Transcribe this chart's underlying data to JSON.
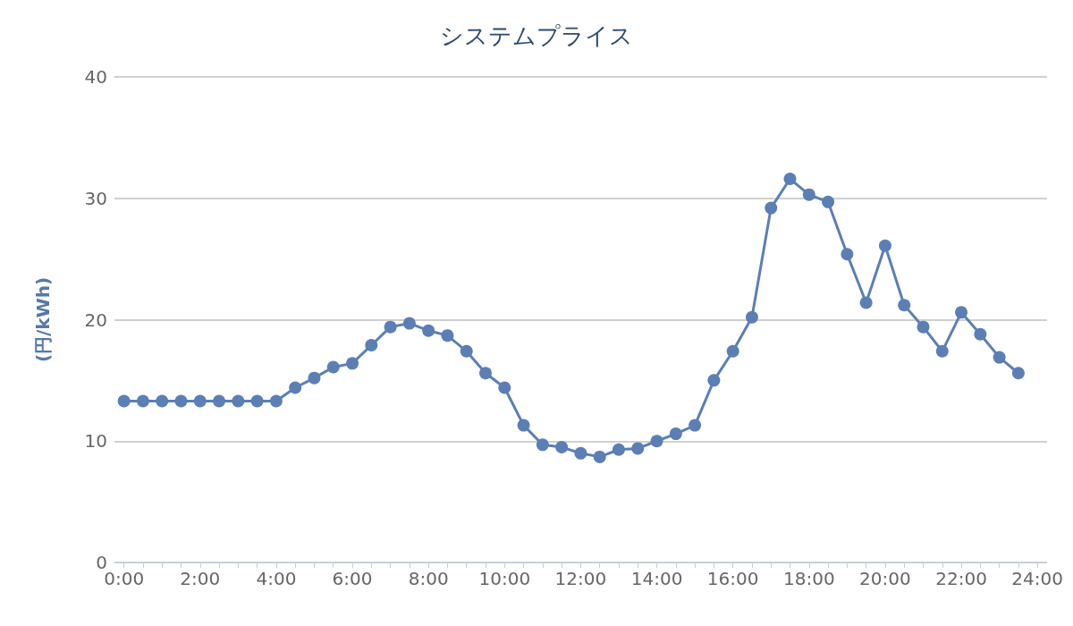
{
  "chart_data": {
    "type": "line",
    "title": "システムプライス",
    "ylabel": "(円/kWh)",
    "x": [
      0,
      0.5,
      1,
      1.5,
      2,
      2.5,
      3,
      3.5,
      4,
      4.5,
      5,
      5.5,
      6,
      6.5,
      7,
      7.5,
      8,
      8.5,
      9,
      9.5,
      10,
      10.5,
      11,
      11.5,
      12,
      12.5,
      13,
      13.5,
      14,
      14.5,
      15,
      15.5,
      16,
      16.5,
      17,
      17.5,
      18,
      18.5,
      19,
      19.5,
      20,
      20.5,
      21,
      21.5,
      22,
      22.5,
      23,
      23.5
    ],
    "series": [
      {
        "color": "#5b7fb5",
        "values": [
          13.3,
          13.3,
          13.3,
          13.3,
          13.3,
          13.3,
          13.3,
          13.3,
          13.3,
          14.4,
          15.2,
          16.1,
          16.4,
          17.9,
          19.4,
          19.7,
          19.1,
          18.7,
          17.4,
          15.6,
          14.4,
          11.3,
          9.7,
          9.5,
          9.0,
          8.7,
          9.3,
          9.4,
          10.0,
          10.6,
          11.3,
          15.0,
          17.4,
          20.2,
          29.2,
          31.6,
          30.3,
          29.7,
          25.4,
          21.4,
          26.1,
          21.2,
          19.4,
          17.4,
          20.6,
          18.8,
          16.9,
          15.6
        ]
      }
    ],
    "xlim": [
      -0.25,
      24.25
    ],
    "xticks": [
      {
        "value": 0,
        "label": "0:00"
      },
      {
        "value": 0.5,
        "label": null
      },
      {
        "value": 1,
        "label": null
      },
      {
        "value": 1.5,
        "label": null
      },
      {
        "value": 2,
        "label": "2:00"
      },
      {
        "value": 2.5,
        "label": null
      },
      {
        "value": 3,
        "label": null
      },
      {
        "value": 3.5,
        "label": null
      },
      {
        "value": 4,
        "label": "4:00"
      },
      {
        "value": 4.5,
        "label": null
      },
      {
        "value": 5,
        "label": null
      },
      {
        "value": 5.5,
        "label": null
      },
      {
        "value": 6,
        "label": "6:00"
      },
      {
        "value": 6.5,
        "label": null
      },
      {
        "value": 7,
        "label": null
      },
      {
        "value": 7.5,
        "label": null
      },
      {
        "value": 8,
        "label": "8:00"
      },
      {
        "value": 8.5,
        "label": null
      },
      {
        "value": 9,
        "label": null
      },
      {
        "value": 9.5,
        "label": null
      },
      {
        "value": 10,
        "label": "10:00"
      },
      {
        "value": 10.5,
        "label": null
      },
      {
        "value": 11,
        "label": null
      },
      {
        "value": 11.5,
        "label": null
      },
      {
        "value": 12,
        "label": "12:00"
      },
      {
        "value": 12.5,
        "label": null
      },
      {
        "value": 13,
        "label": null
      },
      {
        "value": 13.5,
        "label": null
      },
      {
        "value": 14,
        "label": "14:00"
      },
      {
        "value": 14.5,
        "label": null
      },
      {
        "value": 15,
        "label": null
      },
      {
        "value": 15.5,
        "label": null
      },
      {
        "value": 16,
        "label": "16:00"
      },
      {
        "value": 16.5,
        "label": null
      },
      {
        "value": 17,
        "label": null
      },
      {
        "value": 17.5,
        "label": null
      },
      {
        "value": 18,
        "label": "18:00"
      },
      {
        "value": 18.5,
        "label": null
      },
      {
        "value": 19,
        "label": null
      },
      {
        "value": 19.5,
        "label": null
      },
      {
        "value": 20,
        "label": "20:00"
      },
      {
        "value": 20.5,
        "label": null
      },
      {
        "value": 21,
        "label": null
      },
      {
        "value": 21.5,
        "label": null
      },
      {
        "value": 22,
        "label": "22:00"
      },
      {
        "value": 22.5,
        "label": null
      },
      {
        "value": 23,
        "label": null
      },
      {
        "value": 23.5,
        "label": null
      },
      {
        "value": 24,
        "label": "24:00"
      }
    ],
    "ylim": [
      0,
      40
    ],
    "yticks": [
      0,
      10,
      20,
      30,
      40
    ],
    "grid": "y",
    "marker": "circle",
    "line_style": "solid"
  }
}
